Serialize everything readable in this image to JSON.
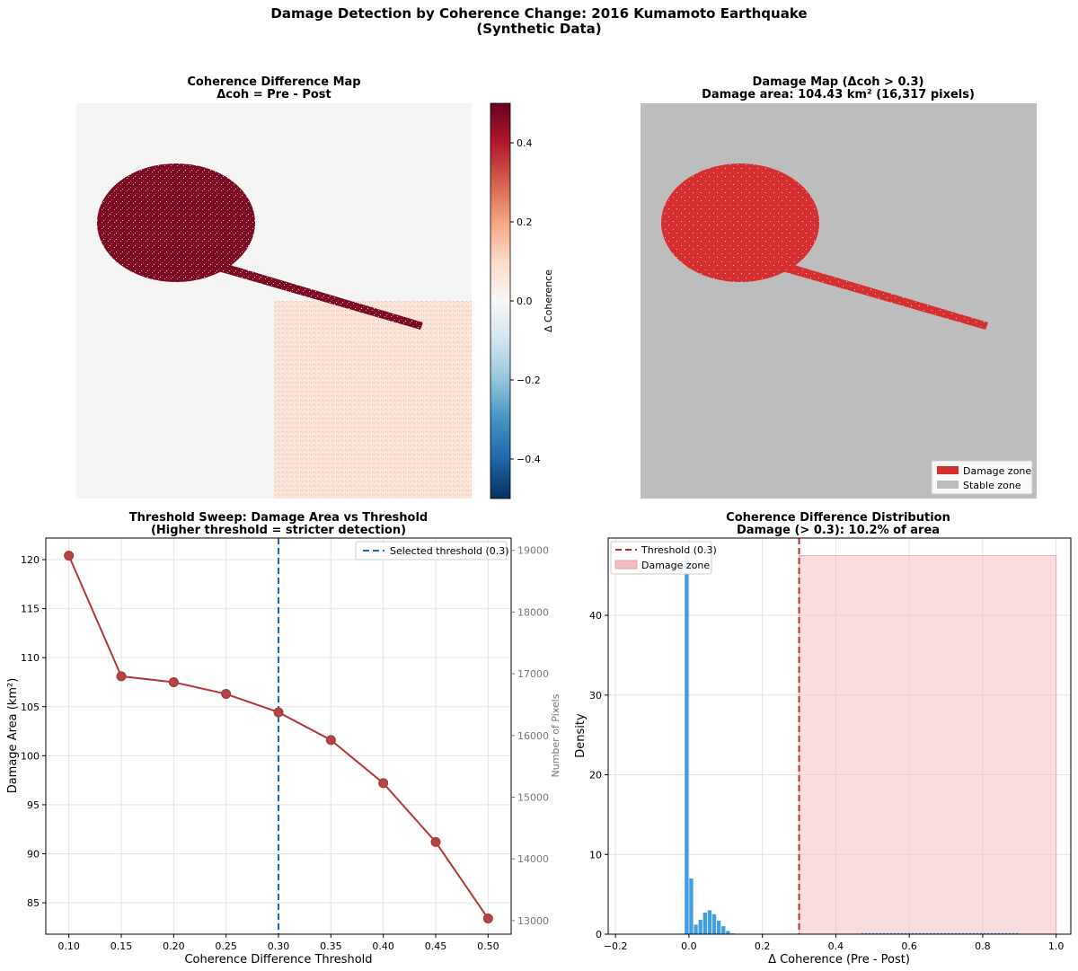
{
  "figure": {
    "title_line1": "Damage Detection by Coherence Change: 2016 Kumamoto Earthquake",
    "title_line2": "(Synthetic Data)"
  },
  "colors": {
    "damage": "#d62f2f",
    "stable": "#bdbdbd",
    "line": "#b83636",
    "marker": "#b34545",
    "threshold_blue": "#1f64c8",
    "threshold_red": "#c62828",
    "hist_blue": "#3f9fe0",
    "damage_fill": "#f2c0c3",
    "map_bg": "#f5f5f5",
    "grid": "#e3e3e3"
  },
  "chart_data": [
    {
      "type": "heatmap",
      "title": "Coherence Difference Map",
      "subtitle": "Δcoh = Pre - Post",
      "colorbar": {
        "label": "Δ Coherence",
        "range": [
          -0.5,
          0.5
        ],
        "ticks": [
          -0.4,
          -0.2,
          0.0,
          0.2,
          0.4
        ],
        "tick_labels": [
          "−0.4",
          "−0.2",
          "0.0",
          "0.2",
          "0.4"
        ],
        "colormap": "RdBu_r"
      },
      "regions": [
        {
          "name": "background",
          "value": 0.0
        },
        {
          "name": "circular damage zone",
          "value": 0.45
        },
        {
          "name": "linear damage strip",
          "value": 0.45
        },
        {
          "name": "lower-right quadrant",
          "value": 0.05
        }
      ]
    },
    {
      "type": "heatmap",
      "title": "Damage Map (Δcoh > 0.3)",
      "subtitle": "Damage area: 104.43 km² (16,317 pixels)",
      "legend": [
        {
          "label": "Damage zone",
          "color": "#d62f2f"
        },
        {
          "label": "Stable zone",
          "color": "#bdbdbd"
        }
      ],
      "legend_position": "bottom-right"
    },
    {
      "type": "line",
      "title": "Threshold Sweep: Damage Area vs Threshold",
      "subtitle": "(Higher threshold = stricter detection)",
      "xlabel": "Coherence Difference Threshold",
      "ylabel": "Damage Area (km²)",
      "y2label": "Number of Pixels",
      "x": [
        0.1,
        0.15,
        0.2,
        0.25,
        0.3,
        0.35,
        0.4,
        0.45,
        0.5
      ],
      "values": [
        120.4,
        108.1,
        107.5,
        106.3,
        104.43,
        101.6,
        97.2,
        91.2,
        83.4
      ],
      "x_tick_labels": [
        "0.10",
        "0.15",
        "0.20",
        "0.25",
        "0.30",
        "0.35",
        "0.40",
        "0.45",
        "0.50"
      ],
      "xlim": [
        0.078,
        0.522
      ],
      "ylim": [
        81.8,
        122.2
      ],
      "y_ticks": [
        85,
        90,
        95,
        100,
        105,
        110,
        115,
        120
      ],
      "y2lim": [
        12780,
        19200
      ],
      "y2_ticks": [
        13000,
        14000,
        15000,
        16000,
        17000,
        18000,
        19000
      ],
      "selected_threshold": 0.3,
      "legend": [
        {
          "label": "Selected threshold (0.3)"
        }
      ],
      "legend_position": "top-right",
      "grid": true
    },
    {
      "type": "bar",
      "title": "Coherence Difference Distribution",
      "subtitle": "Damage (> 0.3): 10.2% of area",
      "xlabel": "Δ Coherence (Pre - Post)",
      "ylabel": "Density",
      "xlim": [
        -0.22,
        1.04
      ],
      "ylim": [
        0,
        49.7
      ],
      "x_ticks": [
        -0.2,
        0.0,
        0.2,
        0.4,
        0.6,
        0.8,
        1.0
      ],
      "x_tick_labels": [
        "−0.2",
        "0.0",
        "0.2",
        "0.4",
        "0.6",
        "0.8",
        "1.0"
      ],
      "y_ticks": [
        0,
        10,
        20,
        30,
        40
      ],
      "bin_width": 0.0125,
      "bin_starts": [
        -0.0125,
        0.0,
        0.0125,
        0.025,
        0.0375,
        0.05,
        0.0625,
        0.075,
        0.0875,
        0.1,
        0.1125
      ],
      "densities": [
        47.5,
        7.0,
        1.2,
        1.8,
        2.7,
        3.0,
        2.5,
        1.7,
        1.0,
        0.4,
        0.1
      ],
      "tail_range": [
        0.47,
        0.9
      ],
      "tail_density": 0.08,
      "threshold": 0.3,
      "damage_zone": [
        0.3,
        1.0
      ],
      "damage_zone_height": 47.5,
      "legend": [
        {
          "label": "Threshold (0.3)"
        },
        {
          "label": "Damage zone"
        }
      ],
      "legend_position": "top-left",
      "grid": true
    }
  ]
}
